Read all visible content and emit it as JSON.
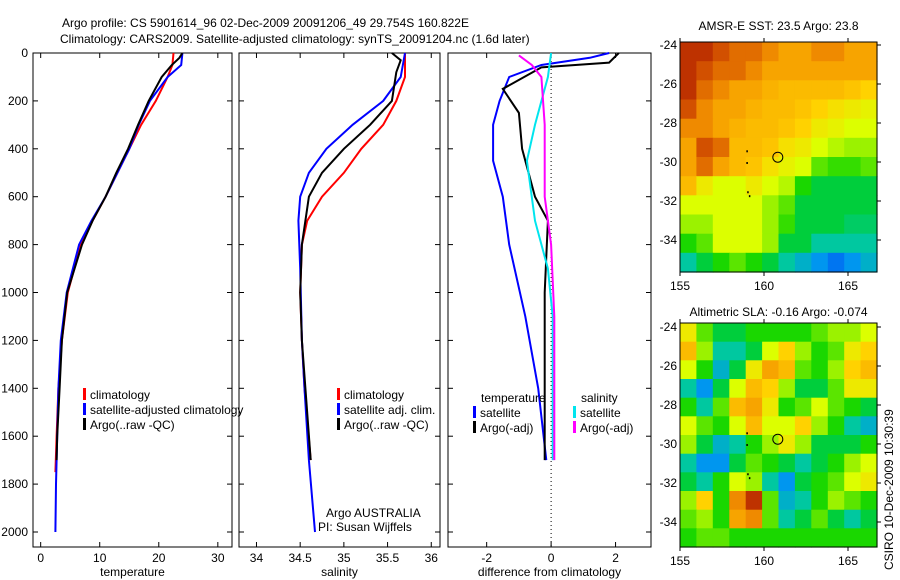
{
  "title_line1": "Argo profile: CS 5901614_96 02-Dec-2009 20091206_49 29.754S 160.822E",
  "title_line2": "Climatology: CARS2009. Satellite-adjusted climatology: synTS_20091204.nc (1.6d later)",
  "credit": "CSIRO 10-Dec-2009 10:30:39",
  "colors": {
    "climatology": "#ff0000",
    "satellite": "#0000ff",
    "argo": "#000000",
    "sal_satellite": "#00e5ee",
    "sal_argo": "#ff00ff"
  },
  "chart_data": [
    {
      "type": "line",
      "id": "temperature",
      "xlabel": "temperature",
      "ylabel": "",
      "xlim": [
        -1.3,
        32.4
      ],
      "ylim": [
        2070,
        0
      ],
      "xticks": [
        "0",
        "10",
        "20",
        "30"
      ],
      "xtick_values": [
        0,
        10,
        20,
        30
      ],
      "yticks": [
        "0",
        "200",
        "400",
        "600",
        "800",
        "1000",
        "1200",
        "1400",
        "1600",
        "1800",
        "2000"
      ],
      "ytick_values": [
        0,
        200,
        400,
        600,
        800,
        1000,
        1200,
        1400,
        1600,
        1800,
        2000
      ],
      "legend": [
        "climatology",
        "satellite-adjusted climatology",
        "Argo(..raw -QC)"
      ],
      "series": [
        {
          "name": "climatology",
          "color": "#ff0000",
          "depth": [
            0,
            50,
            100,
            200,
            300,
            400,
            500,
            600,
            700,
            800,
            1000,
            1200,
            1400,
            1600,
            1750
          ],
          "values": [
            22.5,
            22.3,
            21.5,
            19.5,
            17,
            15,
            13,
            11,
            8.8,
            6.8,
            4.6,
            3.6,
            3.0,
            2.7,
            2.5
          ]
        },
        {
          "name": "satellite-adjusted climatology",
          "color": "#0000ff",
          "depth": [
            0,
            50,
            100,
            200,
            300,
            400,
            500,
            600,
            700,
            800,
            1000,
            1200,
            1400,
            1600,
            1800,
            2000
          ],
          "values": [
            24,
            23.8,
            21.5,
            18.5,
            16.6,
            15,
            13,
            11,
            8.6,
            6.5,
            4.4,
            3.4,
            3.0,
            2.8,
            2.6,
            2.5
          ]
        },
        {
          "name": "Argo(..raw -QC)",
          "color": "#000000",
          "depth": [
            0,
            20,
            50,
            100,
            200,
            300,
            400,
            500,
            600,
            700,
            800,
            1000,
            1200,
            1400,
            1600,
            1700
          ],
          "values": [
            24,
            23.5,
            22.2,
            20.5,
            18.3,
            16.5,
            14.8,
            12.8,
            11,
            8.8,
            7,
            4.5,
            3.6,
            3.2,
            2.8,
            2.7
          ]
        }
      ]
    },
    {
      "type": "line",
      "id": "salinity",
      "xlabel": "salinity",
      "xlim": [
        33.8,
        36.1
      ],
      "ylim": [
        2070,
        0
      ],
      "xticks": [
        "34",
        "34.5",
        "35",
        "35.5",
        "36"
      ],
      "xtick_values": [
        34,
        34.5,
        35,
        35.5,
        36
      ],
      "legend": [
        "climatology",
        "satellite adj. clim.",
        "Argo(..raw -QC)"
      ],
      "annotation": [
        "Argo AUSTRALIA",
        "PI: Susan Wijffels"
      ],
      "series": [
        {
          "name": "climatology",
          "color": "#ff0000",
          "depth": [
            0,
            100,
            200,
            300,
            400,
            500,
            600,
            700,
            800,
            1000,
            1200,
            1400,
            1700
          ],
          "values": [
            35.7,
            35.7,
            35.6,
            35.45,
            35.2,
            35.0,
            34.75,
            34.58,
            34.52,
            34.5,
            34.52,
            34.55,
            34.62
          ]
        },
        {
          "name": "satellite adj. clim.",
          "color": "#0000ff",
          "depth": [
            0,
            100,
            200,
            300,
            400,
            500,
            600,
            700,
            900,
            1200,
            1400,
            1700,
            2000
          ],
          "values": [
            35.7,
            35.65,
            35.45,
            35.1,
            34.8,
            34.6,
            34.5,
            34.48,
            34.5,
            34.52,
            34.55,
            34.6,
            34.67
          ]
        },
        {
          "name": "Argo(..raw -QC)",
          "color": "#000000",
          "depth": [
            0,
            30,
            80,
            200,
            300,
            400,
            500,
            600,
            800,
            1000,
            1200,
            1400,
            1700
          ],
          "values": [
            35.55,
            35.65,
            35.6,
            35.55,
            35.3,
            35.0,
            34.75,
            34.6,
            34.52,
            34.5,
            34.52,
            34.56,
            34.62
          ]
        }
      ]
    },
    {
      "type": "line",
      "id": "difference",
      "xlabel": "difference from climatology",
      "xlim": [
        -3.2,
        3.1
      ],
      "ylim": [
        2070,
        0
      ],
      "xticks": [
        "-2",
        "0",
        "2"
      ],
      "xtick_values": [
        -2,
        0,
        2
      ],
      "legend_headers": [
        "temperature",
        "salinity"
      ],
      "legend": [
        "satellite",
        "Argo(-adj)",
        "satellite",
        "Argo(-adj)"
      ],
      "series": [
        {
          "name": "temperature satellite",
          "color": "#0000ff",
          "depth": [
            0,
            20,
            50,
            100,
            200,
            300,
            450,
            600,
            800,
            1100,
            1400,
            1700
          ],
          "values": [
            1.8,
            1.2,
            -0.3,
            -1.3,
            -1.6,
            -1.8,
            -1.8,
            -1.5,
            -1.3,
            -0.8,
            -0.4,
            -0.15
          ]
        },
        {
          "name": "temperature Argo(-adj)",
          "color": "#000000",
          "depth": [
            0,
            40,
            60,
            150,
            250,
            400,
            600,
            700,
            1000,
            1300,
            1700
          ],
          "values": [
            2.1,
            1.8,
            -0.3,
            -1.5,
            -1.0,
            -0.9,
            -0.5,
            -0.1,
            -0.2,
            -0.2,
            -0.2
          ]
        },
        {
          "name": "salinity satellite",
          "color": "#00e5ee",
          "depth": [
            0,
            100,
            300,
            450,
            700,
            900,
            1100,
            1700
          ],
          "values": [
            0,
            -0.1,
            -0.5,
            -0.75,
            -0.5,
            -0.1,
            0.05,
            0.05
          ]
        },
        {
          "name": "salinity Argo(-adj)",
          "color": "#ff00ff",
          "depth": [
            10,
            50,
            100,
            300,
            600,
            800,
            1100,
            1700
          ],
          "values": [
            -1.0,
            -0.6,
            -0.3,
            -0.2,
            -0.2,
            0,
            0.1,
            0.1
          ]
        }
      ]
    },
    {
      "type": "heatmap",
      "id": "sst_map",
      "title": "AMSR-E SST: 23.5 Argo: 23.8",
      "xlim": [
        155,
        166.8
      ],
      "ylim": [
        -24,
        -35.9
      ],
      "xticks": [
        "155",
        "160",
        "165"
      ],
      "xtick_values": [
        155,
        160,
        165
      ],
      "yticks": [
        "-24",
        "-26",
        "-28",
        "-30",
        "-32",
        "-34"
      ],
      "ytick_values": [
        -24,
        -26,
        -28,
        -30,
        -32,
        -34
      ],
      "argo_position": [
        160.822,
        -29.754
      ],
      "grid": [
        [
          0.95,
          0.95,
          0.9,
          0.85,
          0.85,
          0.8,
          0.75,
          0.75,
          0.8,
          0.8,
          0.75,
          0.75
        ],
        [
          0.95,
          0.9,
          0.85,
          0.85,
          0.8,
          0.75,
          0.75,
          0.75,
          0.75,
          0.75,
          0.75,
          0.75
        ],
        [
          0.95,
          0.85,
          0.8,
          0.75,
          0.75,
          0.72,
          0.7,
          0.7,
          0.7,
          0.7,
          0.68,
          0.65
        ],
        [
          0.9,
          0.8,
          0.75,
          0.75,
          0.72,
          0.7,
          0.7,
          0.68,
          0.65,
          0.62,
          0.6,
          0.58
        ],
        [
          0.8,
          0.8,
          0.75,
          0.72,
          0.7,
          0.7,
          0.68,
          0.65,
          0.6,
          0.58,
          0.55,
          0.55
        ],
        [
          0.75,
          0.9,
          0.85,
          0.7,
          0.7,
          0.68,
          0.62,
          0.6,
          0.55,
          0.52,
          0.5,
          0.5
        ],
        [
          0.75,
          0.85,
          0.75,
          0.7,
          0.68,
          0.62,
          0.58,
          0.55,
          0.45,
          0.42,
          0.42,
          0.45
        ],
        [
          0.7,
          0.6,
          0.55,
          0.55,
          0.6,
          0.55,
          0.52,
          0.4,
          0.35,
          0.35,
          0.35,
          0.35
        ],
        [
          0.55,
          0.55,
          0.55,
          0.55,
          0.55,
          0.5,
          0.45,
          0.35,
          0.35,
          0.35,
          0.35,
          0.35
        ],
        [
          0.5,
          0.5,
          0.55,
          0.55,
          0.55,
          0.5,
          0.42,
          0.35,
          0.35,
          0.35,
          0.33,
          0.33
        ],
        [
          0.4,
          0.45,
          0.55,
          0.55,
          0.55,
          0.5,
          0.35,
          0.35,
          0.3,
          0.3,
          0.3,
          0.3
        ],
        [
          0.3,
          0.35,
          0.4,
          0.45,
          0.4,
          0.35,
          0.3,
          0.25,
          0.2,
          0.15,
          0.2,
          0.25
        ]
      ]
    },
    {
      "type": "heatmap",
      "id": "sla_map",
      "title": "Altimetric SLA: -0.16 Argo: -0.074",
      "xlim": [
        155,
        166.8
      ],
      "ylim": [
        -24,
        -35.9
      ],
      "xticks": [
        "155",
        "160",
        "165"
      ],
      "xtick_values": [
        155,
        160,
        165
      ],
      "yticks": [
        "-24",
        "-26",
        "-28",
        "-30",
        "-32",
        "-34"
      ],
      "ytick_values": [
        -24,
        -26,
        -28,
        -30,
        -32,
        -34
      ],
      "argo_position": [
        160.822,
        -29.754
      ],
      "grid": [
        [
          0.6,
          0.45,
          0.35,
          0.35,
          0.4,
          0.4,
          0.4,
          0.4,
          0.45,
          0.5,
          0.5,
          0.55
        ],
        [
          0.7,
          0.5,
          0.3,
          0.3,
          0.35,
          0.55,
          0.65,
          0.5,
          0.4,
          0.45,
          0.6,
          0.65
        ],
        [
          0.55,
          0.4,
          0.25,
          0.35,
          0.6,
          0.75,
          0.7,
          0.45,
          0.4,
          0.5,
          0.65,
          0.7
        ],
        [
          0.3,
          0.2,
          0.35,
          0.55,
          0.7,
          0.65,
          0.5,
          0.35,
          0.35,
          0.45,
          0.6,
          0.6
        ],
        [
          0.4,
          0.3,
          0.45,
          0.7,
          0.75,
          0.6,
          0.4,
          0.45,
          0.55,
          0.45,
          0.4,
          0.35
        ],
        [
          0.55,
          0.45,
          0.4,
          0.55,
          0.7,
          0.55,
          0.55,
          0.65,
          0.5,
          0.4,
          0.3,
          0.25
        ],
        [
          0.5,
          0.35,
          0.25,
          0.3,
          0.4,
          0.5,
          0.6,
          0.5,
          0.35,
          0.35,
          0.35,
          0.4
        ],
        [
          0.3,
          0.2,
          0.2,
          0.35,
          0.45,
          0.4,
          0.35,
          0.3,
          0.35,
          0.4,
          0.5,
          0.55
        ],
        [
          0.35,
          0.3,
          0.4,
          0.55,
          0.5,
          0.3,
          0.2,
          0.35,
          0.4,
          0.45,
          0.55,
          0.6
        ],
        [
          0.5,
          0.65,
          0.4,
          0.8,
          0.95,
          0.45,
          0.25,
          0.3,
          0.4,
          0.5,
          0.45,
          0.4
        ],
        [
          0.45,
          0.5,
          0.4,
          0.75,
          0.8,
          0.45,
          0.3,
          0.35,
          0.45,
          0.35,
          0.3,
          0.35
        ],
        [
          0.4,
          0.45,
          0.45,
          0.4,
          0.4,
          0.4,
          0.4,
          0.4,
          0.4,
          0.4,
          0.4,
          0.4
        ]
      ]
    }
  ]
}
